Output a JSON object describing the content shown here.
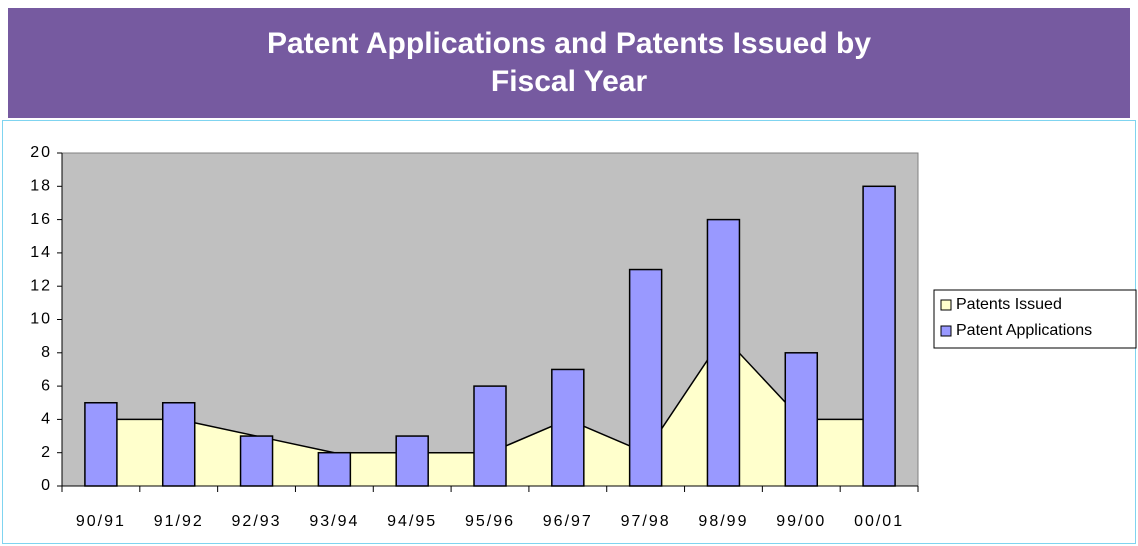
{
  "chart_data": {
    "type": "bar",
    "title": "Patent Applications and Patents Issued by Fiscal Year",
    "categories": [
      "90/91",
      "91/92",
      "92/93",
      "93/94",
      "94/95",
      "95/96",
      "96/97",
      "97/98",
      "98/99",
      "99/00",
      "00/01"
    ],
    "series": [
      {
        "name": "Patents Issued",
        "type": "area",
        "color": "#ffffcc",
        "values": [
          4,
          4,
          3,
          2,
          2,
          2,
          4,
          2,
          9,
          4,
          4
        ]
      },
      {
        "name": "Patent Applications",
        "type": "bar",
        "color": "#9999ff",
        "values": [
          5,
          5,
          3,
          2,
          3,
          6,
          7,
          13,
          16,
          8,
          18
        ]
      }
    ],
    "ylim": [
      0,
      20
    ],
    "yticks": [
      0,
      2,
      4,
      6,
      8,
      10,
      12,
      14,
      16,
      18,
      20
    ],
    "legend": "right"
  }
}
